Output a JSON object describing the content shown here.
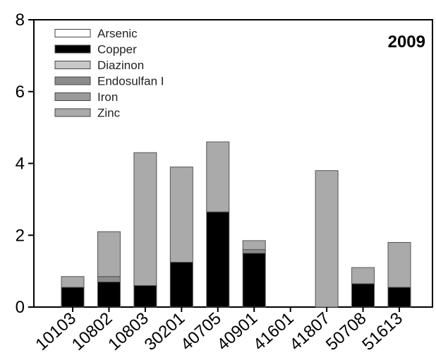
{
  "chart_data": {
    "type": "bar",
    "stacked": true,
    "annotation": "2009",
    "categories": [
      "10103",
      "10802",
      "10803",
      "30201",
      "40705",
      "40901",
      "41601",
      "41807",
      "50708",
      "51613"
    ],
    "series": [
      {
        "name": "Arsenic",
        "color": "#ffffff",
        "values": [
          0,
          0,
          0,
          0,
          0,
          0,
          0,
          0,
          0,
          0
        ]
      },
      {
        "name": "Copper",
        "color": "#000000",
        "values": [
          0.55,
          0.7,
          0.6,
          1.25,
          2.65,
          1.5,
          0,
          0,
          0.65,
          0.55
        ]
      },
      {
        "name": "Diazinon",
        "color": "#c8c8c8",
        "values": [
          0,
          0,
          0,
          0,
          0,
          0,
          0,
          0,
          0,
          0
        ]
      },
      {
        "name": "Endosulfan I",
        "color": "#8c8c8c",
        "values": [
          0,
          0.15,
          0,
          0,
          0,
          0.1,
          0,
          0,
          0,
          0
        ]
      },
      {
        "name": "Iron",
        "color": "#9a9a9a",
        "values": [
          0,
          0,
          0,
          0,
          0,
          0,
          0,
          0,
          0,
          0
        ]
      },
      {
        "name": "Zinc",
        "color": "#aaaaaa",
        "values": [
          0.3,
          1.25,
          3.7,
          2.65,
          1.95,
          0.25,
          0,
          3.8,
          0.45,
          1.25
        ]
      }
    ],
    "ylim": [
      0,
      8
    ],
    "yticks": [
      "0",
      "2",
      "4",
      "6",
      "8"
    ],
    "legend_position": "top-left",
    "grid": false
  }
}
